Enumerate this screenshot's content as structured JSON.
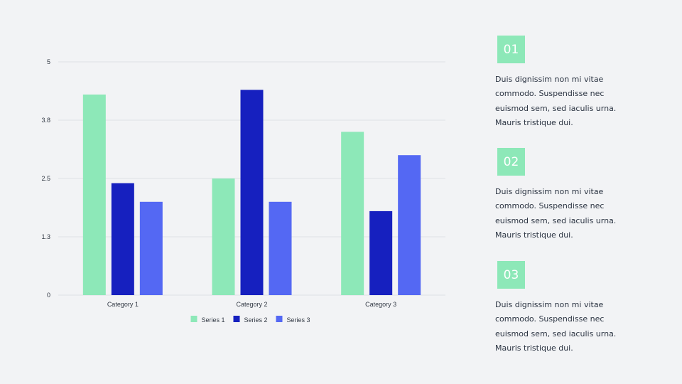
{
  "chart_data": {
    "type": "bar",
    "categories": [
      "Category 1",
      "Category 2",
      "Category 3"
    ],
    "series": [
      {
        "name": "Series 1",
        "color": "#8de8b8",
        "values": [
          4.3,
          2.5,
          3.5
        ]
      },
      {
        "name": "Series 2",
        "color": "#1620bf",
        "values": [
          2.4,
          4.4,
          1.8
        ]
      },
      {
        "name": "Series 3",
        "color": "#5468f3",
        "values": [
          2.0,
          2.0,
          3.0
        ]
      }
    ],
    "yticks": [
      "0",
      "1.3",
      "2.5",
      "3.8",
      "5"
    ],
    "ylim": [
      0,
      5
    ],
    "grid": true,
    "legend_position": "bottom",
    "title": "",
    "xlabel": "",
    "ylabel": ""
  },
  "steps": [
    {
      "number": "01",
      "text": "Duis dignissim non mi vitae\ncommodo. Suspendisse nec\neuismod sem, sed iaculis urna.\nMauris tristique dui."
    },
    {
      "number": "02",
      "text": "Duis dignissim non mi vitae\ncommodo. Suspendisse nec\neuismod sem, sed iaculis urna.\nMauris tristique dui."
    },
    {
      "number": "03",
      "text": "Duis dignissim non mi vitae\ncommodo. Suspendisse nec\neuismod sem, sed iaculis urna.\nMauris tristique dui."
    }
  ],
  "colors": {
    "badge": "#8de8b8",
    "background": "#f2f3f5",
    "grid": "#dfe1e5"
  }
}
